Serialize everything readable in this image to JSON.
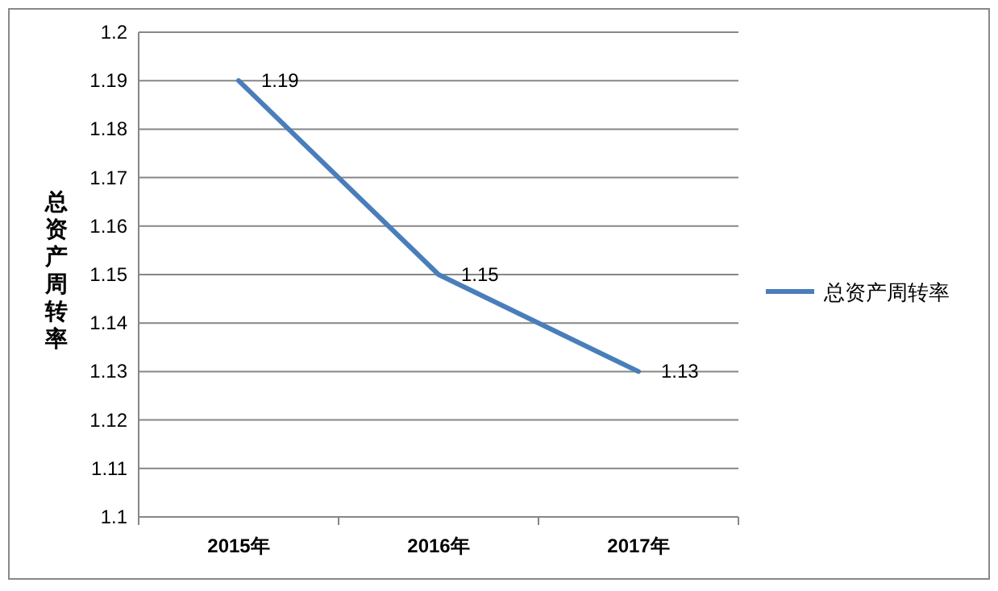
{
  "chart_data": {
    "type": "line",
    "ylabel": "总资产周转率",
    "categories": [
      "2015年",
      "2016年",
      "2017年"
    ],
    "series": [
      {
        "name": "总资产周转率",
        "color": "#4a7ebb",
        "values": [
          1.19,
          1.15,
          1.13
        ]
      }
    ],
    "ylim": [
      1.1,
      1.2
    ],
    "yticks": [
      1.1,
      1.11,
      1.12,
      1.13,
      1.14,
      1.15,
      1.16,
      1.17,
      1.18,
      1.19,
      1.2
    ],
    "grid": "y",
    "legend": "right",
    "data_labels": true,
    "line_style": "solid"
  }
}
